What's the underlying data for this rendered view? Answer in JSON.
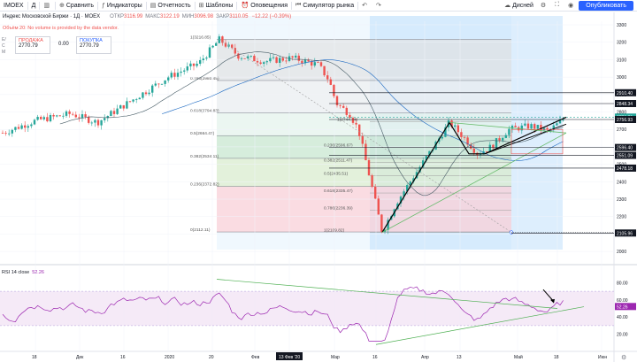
{
  "toolbar": {
    "symbol": "IMOEX",
    "interval": "Д",
    "compare": "Сравнить",
    "indicators": "Индикаторы",
    "reports": "Отчетность",
    "templates": "Шаблоны",
    "alerts": "Оповещения",
    "simulator": "Симулятор рынка",
    "layout": "Дисней",
    "publish": "Опубликовать"
  },
  "legend": {
    "name": "Индекс Московской Биржи · 1Д · MOEX",
    "open_label": "ОТКР",
    "open": "3116.99",
    "high_label": "МАКС",
    "high": "3122.19",
    "low_label": "МИН",
    "low": "3096.98",
    "close_label": "ЗАКР",
    "close": "3110.05",
    "change": "−12.22 (−0.39%)"
  },
  "notice": "Объём 20: No volume is provided by the data vendor.",
  "trade": {
    "sell_label": "ПРОДАЖА",
    "sell_value": "2770.79",
    "spread": "0.00",
    "buy_label": "ПОКУПКА",
    "buy_value": "2770.79",
    "colors": {
      "sell": "#ef5350",
      "buy": "#2962ff"
    }
  },
  "side_labels": [
    "Е/",
    "С",
    "М"
  ],
  "rsi": {
    "label": "RSI 14 close",
    "value": "52.26"
  },
  "colors": {
    "bull": "#26a69a",
    "bear": "#ef5350",
    "rsi": "#9c27b0",
    "accent": "#2962ff",
    "ma": "#2196f3",
    "gray": "#787b86"
  },
  "chart_data": [
    {
      "type": "candlestick",
      "title": "Индекс Московской Биржи · 1Д · MOEX",
      "ylim": [
        1950,
        3300
      ],
      "yticks": [
        2000,
        2100,
        2200,
        2300,
        2400,
        2500,
        2600,
        2700,
        2800,
        2900,
        3000,
        3100,
        3200,
        3300
      ],
      "xticks": [
        "18",
        "Дек",
        "16",
        "2020",
        "20",
        "Фев",
        "13 Фев '20",
        "Мар",
        "16",
        "Апр",
        "13",
        "Май",
        "18",
        "Июн"
      ],
      "price_labels": [
        "2910.40",
        "2848.34",
        "2770.79",
        "2756.93",
        "2596.40",
        "2551.09",
        "2478.18",
        "2105.96"
      ],
      "fibonacci": [
        {
          "level": "1",
          "value": "3216.85"
        },
        {
          "level": "0.786",
          "value": "2980.45"
        },
        {
          "level": "0.618",
          "value": "2794.83"
        },
        {
          "level": "0.5",
          "value": "2664.47"
        },
        {
          "level": "0.382",
          "value": "2534.11"
        },
        {
          "level": "0.236",
          "value": "2372.82"
        },
        {
          "level": "0",
          "value": "2112.11"
        }
      ],
      "fibonacci_inner": [
        {
          "level": "1",
          "value": "2744.24"
        },
        {
          "level": "0.236",
          "value": "2596.67"
        },
        {
          "level": "0.382",
          "value": "2511.47"
        },
        {
          "level": "0.5",
          "value": "2435.51"
        },
        {
          "level": "0.618",
          "value": "2335.47"
        },
        {
          "level": "0.786",
          "value": "2236.39"
        },
        {
          "level": "1",
          "value": "2109.82"
        }
      ]
    },
    {
      "type": "line",
      "title": "RSI 14 close",
      "ylim": [
        0,
        100
      ],
      "yticks": [
        20,
        40,
        60,
        80
      ],
      "series": [
        {
          "name": "RSI 14 close",
          "last": 52.26
        }
      ]
    }
  ]
}
